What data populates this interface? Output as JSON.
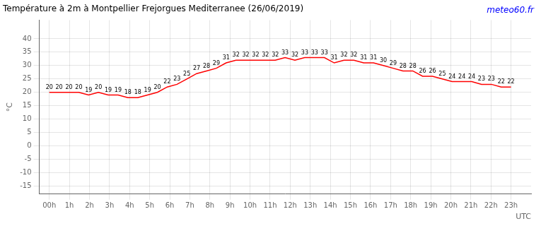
{
  "chart_data": {
    "type": "line",
    "title": "Température à 2m à Montpellier Frejorgues Mediterranee (26/06/2019)",
    "ylabel": "°C",
    "xlabel": "UTC",
    "annotations": [
      {
        "text": "meteo60.fr",
        "color": "#0000ff"
      }
    ],
    "x": [
      0,
      0.489362,
      0.978723,
      1.468085,
      1.957447,
      2.446809,
      2.93617,
      3.425532,
      3.914894,
      4.404255,
      4.893617,
      5.382979,
      5.87234,
      6.361702,
      6.851064,
      7.340426,
      7.829787,
      8.319149,
      8.808511,
      9.297872,
      9.787234,
      10.276596,
      10.765957,
      11.255319,
      11.744681,
      12.234043,
      12.723404,
      13.212766,
      13.702128,
      14.191489,
      14.680851,
      15.170213,
      15.659574,
      16.148936,
      16.638298,
      17.12766,
      17.617021,
      18.106383,
      18.595745,
      19.085106,
      19.574468,
      20.06383,
      20.553191,
      21.042553,
      21.531915,
      22.021277,
      22.510638,
      23
    ],
    "values": [
      20,
      20,
      20,
      20,
      19,
      20,
      19,
      19,
      18,
      18,
      19,
      20,
      22,
      23,
      25,
      27,
      28,
      29,
      31,
      32,
      32,
      32,
      32,
      32,
      33,
      32,
      33,
      33,
      33,
      31,
      32,
      32,
      31,
      31,
      30,
      29,
      28,
      28,
      26,
      26,
      25,
      24,
      24,
      24,
      23,
      23,
      22,
      22
    ],
    "color": "#ff0000",
    "data_labels": true,
    "grid": true,
    "xlim": [
      -0.5,
      24.0
    ],
    "xticks": [
      {
        "value": 0,
        "label": "00h"
      },
      {
        "value": 1,
        "label": "1h"
      },
      {
        "value": 2,
        "label": "2h"
      },
      {
        "value": 3,
        "label": "3h"
      },
      {
        "value": 4,
        "label": "4h"
      },
      {
        "value": 5,
        "label": "5h"
      },
      {
        "value": 6,
        "label": "6h"
      },
      {
        "value": 7,
        "label": "7h"
      },
      {
        "value": 8,
        "label": "8h"
      },
      {
        "value": 9,
        "label": "9h"
      },
      {
        "value": 10,
        "label": "10h"
      },
      {
        "value": 11,
        "label": "11h"
      },
      {
        "value": 12,
        "label": "12h"
      },
      {
        "value": 13,
        "label": "13h"
      },
      {
        "value": 14,
        "label": "14h"
      },
      {
        "value": 15,
        "label": "15h"
      },
      {
        "value": 16,
        "label": "16h"
      },
      {
        "value": 17,
        "label": "17h"
      },
      {
        "value": 18,
        "label": "18h"
      },
      {
        "value": 19,
        "label": "19h"
      },
      {
        "value": 20,
        "label": "20h"
      },
      {
        "value": 21,
        "label": "21h"
      },
      {
        "value": 22,
        "label": "22h"
      },
      {
        "value": 23,
        "label": "23h"
      }
    ],
    "ylim": [
      -18,
      47
    ],
    "yticks": [
      -15,
      -10,
      -5,
      0,
      5,
      10,
      15,
      20,
      25,
      30,
      35,
      40
    ]
  }
}
